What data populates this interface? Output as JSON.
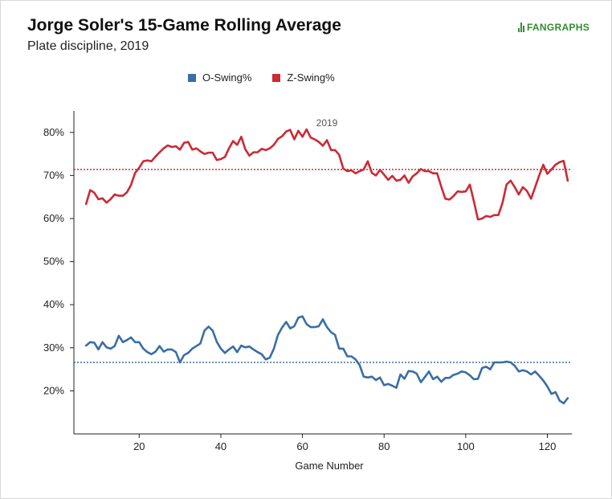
{
  "header": {
    "title": "Jorge Soler's 15-Game Rolling Average",
    "subtitle": "Plate discipline, 2019",
    "logo_text": "FANGRAPHS"
  },
  "colors": {
    "o_swing": "#3a6ea5",
    "z_swing": "#cc2a35",
    "logo": "#2f8f2f"
  },
  "chart_data": {
    "type": "line",
    "season_label": "2019",
    "xlabel": "Game Number",
    "ylabel": "",
    "xlim": [
      4,
      126
    ],
    "ylim": [
      10,
      85
    ],
    "x_ticks": [
      20,
      40,
      60,
      80,
      100,
      120
    ],
    "y_ticks": [
      20,
      30,
      40,
      50,
      60,
      70,
      80
    ],
    "y_tick_labels": [
      "20%",
      "30%",
      "40%",
      "50%",
      "60%",
      "70%",
      "80%"
    ],
    "x_tick_labels": [
      "20",
      "40",
      "60",
      "80",
      "100",
      "120"
    ],
    "legend_position": "top",
    "grid": false,
    "series": [
      {
        "name": "O-Swing%",
        "color": "#3a6ea5",
        "average": 26.6,
        "points": [
          [
            7,
            30.5
          ],
          [
            8,
            31.3
          ],
          [
            9,
            31.2
          ],
          [
            10,
            29.6
          ],
          [
            11,
            31.3
          ],
          [
            12,
            30.1
          ],
          [
            13,
            29.8
          ],
          [
            14,
            30.4
          ],
          [
            15,
            32.8
          ],
          [
            16,
            31.3
          ],
          [
            17,
            31.8
          ],
          [
            18,
            32.4
          ],
          [
            19,
            31.3
          ],
          [
            20,
            31.3
          ],
          [
            21,
            29.8
          ],
          [
            22,
            29.0
          ],
          [
            23,
            28.5
          ],
          [
            24,
            29.1
          ],
          [
            25,
            30.4
          ],
          [
            26,
            29.1
          ],
          [
            27,
            29.6
          ],
          [
            28,
            29.6
          ],
          [
            29,
            29.0
          ],
          [
            30,
            26.6
          ],
          [
            31,
            28.3
          ],
          [
            32,
            28.8
          ],
          [
            33,
            29.8
          ],
          [
            34,
            30.4
          ],
          [
            35,
            31.0
          ],
          [
            36,
            34.0
          ],
          [
            37,
            34.9
          ],
          [
            38,
            34.0
          ],
          [
            39,
            31.4
          ],
          [
            40,
            29.8
          ],
          [
            41,
            28.8
          ],
          [
            42,
            29.6
          ],
          [
            43,
            30.3
          ],
          [
            44,
            29.0
          ],
          [
            45,
            30.5
          ],
          [
            46,
            30.1
          ],
          [
            47,
            30.3
          ],
          [
            48,
            29.6
          ],
          [
            49,
            29.0
          ],
          [
            50,
            28.5
          ],
          [
            51,
            27.3
          ],
          [
            52,
            27.7
          ],
          [
            53,
            29.8
          ],
          [
            54,
            33.0
          ],
          [
            55,
            34.7
          ],
          [
            56,
            36.0
          ],
          [
            57,
            34.5
          ],
          [
            58,
            35.0
          ],
          [
            59,
            37.0
          ],
          [
            60,
            37.3
          ],
          [
            61,
            35.5
          ],
          [
            62,
            34.8
          ],
          [
            63,
            34.8
          ],
          [
            64,
            35.0
          ],
          [
            65,
            36.6
          ],
          [
            66,
            34.8
          ],
          [
            67,
            33.6
          ],
          [
            68,
            33.0
          ],
          [
            69,
            29.8
          ],
          [
            70,
            29.8
          ],
          [
            71,
            28.0
          ],
          [
            72,
            28.0
          ],
          [
            73,
            27.3
          ],
          [
            74,
            26.0
          ],
          [
            75,
            23.3
          ],
          [
            76,
            23.1
          ],
          [
            77,
            23.3
          ],
          [
            78,
            22.5
          ],
          [
            79,
            23.1
          ],
          [
            80,
            21.3
          ],
          [
            81,
            21.6
          ],
          [
            82,
            21.2
          ],
          [
            83,
            20.7
          ],
          [
            84,
            23.8
          ],
          [
            85,
            22.8
          ],
          [
            86,
            24.6
          ],
          [
            87,
            24.5
          ],
          [
            88,
            24.0
          ],
          [
            89,
            22.0
          ],
          [
            90,
            23.2
          ],
          [
            91,
            24.5
          ],
          [
            92,
            22.7
          ],
          [
            93,
            23.3
          ],
          [
            94,
            22.1
          ],
          [
            95,
            23.0
          ],
          [
            96,
            23.0
          ],
          [
            97,
            23.7
          ],
          [
            98,
            24.0
          ],
          [
            99,
            24.5
          ],
          [
            100,
            24.3
          ],
          [
            101,
            23.6
          ],
          [
            102,
            22.7
          ],
          [
            103,
            22.8
          ],
          [
            104,
            25.3
          ],
          [
            105,
            25.6
          ],
          [
            106,
            25.0
          ],
          [
            107,
            26.6
          ],
          [
            108,
            26.6
          ],
          [
            109,
            26.6
          ],
          [
            110,
            26.8
          ],
          [
            111,
            26.6
          ],
          [
            112,
            25.8
          ],
          [
            113,
            24.5
          ],
          [
            114,
            24.8
          ],
          [
            115,
            24.5
          ],
          [
            116,
            23.8
          ],
          [
            117,
            24.5
          ],
          [
            118,
            23.5
          ],
          [
            119,
            22.4
          ],
          [
            120,
            21.0
          ],
          [
            121,
            19.3
          ],
          [
            122,
            19.7
          ],
          [
            123,
            17.7
          ],
          [
            124,
            17.1
          ],
          [
            125,
            18.3
          ]
        ]
      },
      {
        "name": "Z-Swing%",
        "color": "#cc2a35",
        "average": 71.4,
        "points": [
          [
            7,
            63.4
          ],
          [
            8,
            66.6
          ],
          [
            9,
            66.0
          ],
          [
            10,
            64.5
          ],
          [
            11,
            64.7
          ],
          [
            12,
            63.7
          ],
          [
            13,
            64.5
          ],
          [
            14,
            65.6
          ],
          [
            15,
            65.3
          ],
          [
            16,
            65.3
          ],
          [
            17,
            66.1
          ],
          [
            18,
            67.8
          ],
          [
            19,
            70.6
          ],
          [
            20,
            71.8
          ],
          [
            21,
            73.3
          ],
          [
            22,
            73.5
          ],
          [
            23,
            73.3
          ],
          [
            24,
            74.4
          ],
          [
            25,
            75.4
          ],
          [
            26,
            76.3
          ],
          [
            27,
            77.0
          ],
          [
            28,
            76.6
          ],
          [
            29,
            76.8
          ],
          [
            30,
            76.0
          ],
          [
            31,
            77.6
          ],
          [
            32,
            77.8
          ],
          [
            33,
            76.0
          ],
          [
            34,
            76.3
          ],
          [
            35,
            75.6
          ],
          [
            36,
            75.0
          ],
          [
            37,
            75.3
          ],
          [
            38,
            75.3
          ],
          [
            39,
            73.6
          ],
          [
            40,
            73.8
          ],
          [
            41,
            74.3
          ],
          [
            42,
            76.3
          ],
          [
            43,
            78.0
          ],
          [
            44,
            77.1
          ],
          [
            45,
            79.0
          ],
          [
            46,
            76.1
          ],
          [
            47,
            74.6
          ],
          [
            48,
            75.4
          ],
          [
            49,
            75.4
          ],
          [
            50,
            76.2
          ],
          [
            51,
            75.9
          ],
          [
            52,
            76.3
          ],
          [
            53,
            77.1
          ],
          [
            54,
            78.5
          ],
          [
            55,
            79.1
          ],
          [
            56,
            80.2
          ],
          [
            57,
            80.6
          ],
          [
            58,
            78.4
          ],
          [
            59,
            80.4
          ],
          [
            60,
            79.0
          ],
          [
            61,
            80.7
          ],
          [
            62,
            78.8
          ],
          [
            63,
            78.4
          ],
          [
            64,
            77.8
          ],
          [
            65,
            76.9
          ],
          [
            66,
            78.2
          ],
          [
            67,
            75.9
          ],
          [
            68,
            75.9
          ],
          [
            69,
            74.8
          ],
          [
            70,
            71.6
          ],
          [
            71,
            71.0
          ],
          [
            72,
            71.2
          ],
          [
            73,
            70.5
          ],
          [
            74,
            71.0
          ],
          [
            75,
            71.4
          ],
          [
            76,
            73.3
          ],
          [
            77,
            70.6
          ],
          [
            78,
            70.0
          ],
          [
            79,
            71.3
          ],
          [
            80,
            70.2
          ],
          [
            81,
            69.0
          ],
          [
            82,
            69.9
          ],
          [
            83,
            68.8
          ],
          [
            84,
            69.0
          ],
          [
            85,
            70.0
          ],
          [
            86,
            68.3
          ],
          [
            87,
            69.8
          ],
          [
            88,
            70.5
          ],
          [
            89,
            71.5
          ],
          [
            90,
            71.0
          ],
          [
            91,
            71.0
          ],
          [
            92,
            70.5
          ],
          [
            93,
            70.5
          ],
          [
            94,
            67.4
          ],
          [
            95,
            64.6
          ],
          [
            96,
            64.4
          ],
          [
            97,
            65.2
          ],
          [
            98,
            66.3
          ],
          [
            99,
            66.2
          ],
          [
            100,
            66.3
          ],
          [
            101,
            67.9
          ],
          [
            102,
            64.0
          ],
          [
            103,
            59.8
          ],
          [
            104,
            60.0
          ],
          [
            105,
            60.6
          ],
          [
            106,
            60.4
          ],
          [
            107,
            60.8
          ],
          [
            108,
            60.8
          ],
          [
            109,
            63.6
          ],
          [
            110,
            67.9
          ],
          [
            111,
            68.8
          ],
          [
            112,
            67.3
          ],
          [
            113,
            65.6
          ],
          [
            114,
            67.3
          ],
          [
            115,
            66.4
          ],
          [
            116,
            64.6
          ],
          [
            117,
            67.3
          ],
          [
            118,
            70.0
          ],
          [
            119,
            72.5
          ],
          [
            120,
            70.4
          ],
          [
            121,
            71.4
          ],
          [
            122,
            72.5
          ],
          [
            123,
            73.1
          ],
          [
            124,
            73.4
          ],
          [
            125,
            68.8
          ]
        ]
      }
    ]
  }
}
